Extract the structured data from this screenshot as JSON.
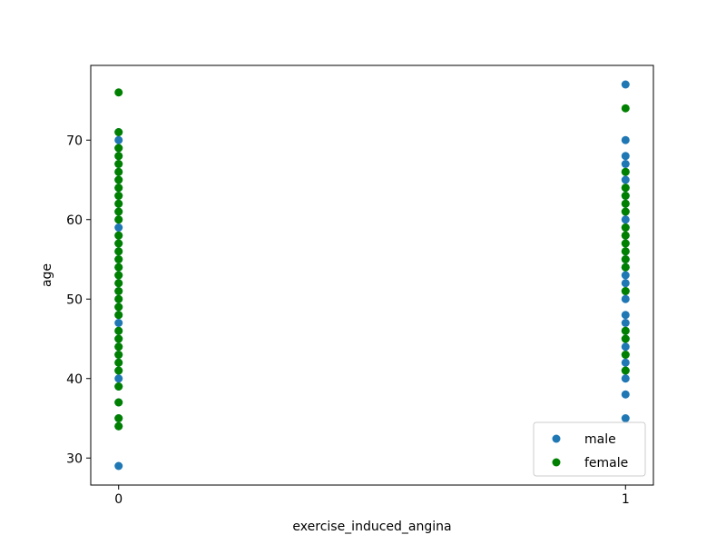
{
  "chart_data": {
    "type": "scatter",
    "title": "",
    "xlabel": "exercise_induced_angina",
    "ylabel": "age",
    "xlim": [
      -0.055,
      1.055
    ],
    "ylim": [
      26.6,
      79.4
    ],
    "x_ticks": [
      0,
      1
    ],
    "y_ticks": [
      30,
      40,
      50,
      60,
      70
    ],
    "grid": false,
    "legend_position": "bottom-right",
    "series": [
      {
        "name": "male",
        "color": "#1f77b4",
        "points": [
          [
            0,
            29
          ],
          [
            0,
            34
          ],
          [
            0,
            35
          ],
          [
            0,
            37
          ],
          [
            0,
            39
          ],
          [
            0,
            40
          ],
          [
            0,
            41
          ],
          [
            0,
            42
          ],
          [
            0,
            43
          ],
          [
            0,
            44
          ],
          [
            0,
            45
          ],
          [
            0,
            46
          ],
          [
            0,
            47
          ],
          [
            0,
            48
          ],
          [
            0,
            49
          ],
          [
            0,
            50
          ],
          [
            0,
            51
          ],
          [
            0,
            52
          ],
          [
            0,
            53
          ],
          [
            0,
            54
          ],
          [
            0,
            55
          ],
          [
            0,
            56
          ],
          [
            0,
            57
          ],
          [
            0,
            58
          ],
          [
            0,
            59
          ],
          [
            0,
            60
          ],
          [
            0,
            61
          ],
          [
            0,
            62
          ],
          [
            0,
            63
          ],
          [
            0,
            64
          ],
          [
            0,
            65
          ],
          [
            0,
            66
          ],
          [
            0,
            67
          ],
          [
            0,
            68
          ],
          [
            0,
            69
          ],
          [
            0,
            70
          ],
          [
            0,
            71
          ],
          [
            1,
            35
          ],
          [
            1,
            38
          ],
          [
            1,
            40
          ],
          [
            1,
            41
          ],
          [
            1,
            42
          ],
          [
            1,
            43
          ],
          [
            1,
            44
          ],
          [
            1,
            45
          ],
          [
            1,
            46
          ],
          [
            1,
            47
          ],
          [
            1,
            48
          ],
          [
            1,
            50
          ],
          [
            1,
            51
          ],
          [
            1,
            52
          ],
          [
            1,
            53
          ],
          [
            1,
            54
          ],
          [
            1,
            55
          ],
          [
            1,
            56
          ],
          [
            1,
            57
          ],
          [
            1,
            58
          ],
          [
            1,
            59
          ],
          [
            1,
            60
          ],
          [
            1,
            61
          ],
          [
            1,
            62
          ],
          [
            1,
            63
          ],
          [
            1,
            64
          ],
          [
            1,
            65
          ],
          [
            1,
            66
          ],
          [
            1,
            67
          ],
          [
            1,
            68
          ],
          [
            1,
            70
          ],
          [
            1,
            77
          ]
        ]
      },
      {
        "name": "female",
        "color": "#008000",
        "points": [
          [
            0,
            34
          ],
          [
            0,
            35
          ],
          [
            0,
            37
          ],
          [
            0,
            39
          ],
          [
            0,
            41
          ],
          [
            0,
            42
          ],
          [
            0,
            43
          ],
          [
            0,
            44
          ],
          [
            0,
            45
          ],
          [
            0,
            46
          ],
          [
            0,
            48
          ],
          [
            0,
            49
          ],
          [
            0,
            50
          ],
          [
            0,
            51
          ],
          [
            0,
            52
          ],
          [
            0,
            53
          ],
          [
            0,
            54
          ],
          [
            0,
            55
          ],
          [
            0,
            56
          ],
          [
            0,
            57
          ],
          [
            0,
            58
          ],
          [
            0,
            60
          ],
          [
            0,
            61
          ],
          [
            0,
            62
          ],
          [
            0,
            63
          ],
          [
            0,
            64
          ],
          [
            0,
            65
          ],
          [
            0,
            66
          ],
          [
            0,
            67
          ],
          [
            0,
            68
          ],
          [
            0,
            69
          ],
          [
            0,
            71
          ],
          [
            0,
            76
          ],
          [
            1,
            41
          ],
          [
            1,
            43
          ],
          [
            1,
            45
          ],
          [
            1,
            46
          ],
          [
            1,
            51
          ],
          [
            1,
            54
          ],
          [
            1,
            55
          ],
          [
            1,
            56
          ],
          [
            1,
            57
          ],
          [
            1,
            58
          ],
          [
            1,
            59
          ],
          [
            1,
            61
          ],
          [
            1,
            62
          ],
          [
            1,
            63
          ],
          [
            1,
            64
          ],
          [
            1,
            66
          ],
          [
            1,
            74
          ]
        ]
      }
    ]
  }
}
